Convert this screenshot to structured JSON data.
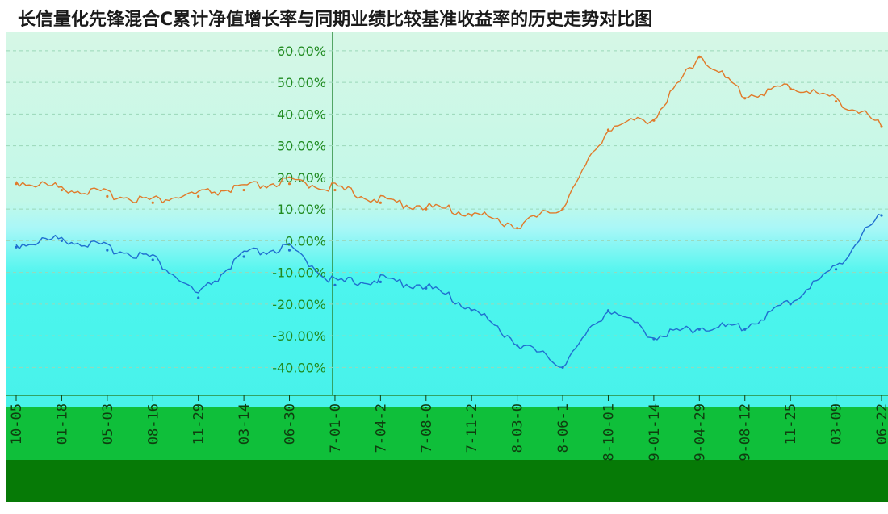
{
  "title": "长信量化先锋混合C累计净值增长率与同期业绩比较基准收益率的历史走势对比图",
  "colors": {
    "fund_line": "#1f6fd0",
    "benchmark_line": "#e07a2a",
    "plot_bg_top": "#d6f7e6",
    "plot_bg_mid": "#aaf7f7",
    "plot_bg_low": "#4cf5ee",
    "axis_band": "#0fbf3a",
    "footer_band": "#067a06",
    "tick_text": "#1f8a1f",
    "grid": "#9ad7b8"
  },
  "chart_data": {
    "type": "line",
    "title": "长信量化先锋混合C累计净值增长率与同期业绩比较基准收益率的历史走势对比图",
    "y_tick_labels": [
      "60.00%",
      "50.00%",
      "40.00%",
      "30.00%",
      "20.00%",
      "10.00%",
      "0.00%",
      "-10.00%",
      "-20.00%",
      "-30.00%",
      "-40.00%"
    ],
    "ylim": [
      -45,
      62
    ],
    "x_tick_labels": [
      "10-05",
      "01-18",
      "05-03",
      "08-16",
      "11-29",
      "03-14",
      "06-30",
      "7-01-0",
      "7-04-2",
      "7-08-0",
      "7-11-2",
      "8-03-0",
      "8-06-1",
      "8-10-01",
      "9-01-14",
      "9-04-29",
      "9-08-12",
      "11-25",
      "03-09",
      "06-22"
    ],
    "series": [
      {
        "key": "fund",
        "x": [
          0,
          1,
          2,
          3,
          4,
          5,
          6,
          7,
          8,
          9,
          10,
          11,
          12,
          13,
          14,
          15,
          16,
          17,
          18,
          19
        ],
        "y": [
          -2,
          0,
          -3,
          -6,
          -18,
          -5,
          -3,
          -14,
          -13,
          -15,
          -22,
          -33,
          -40,
          -22,
          -31,
          -28,
          -28,
          -20,
          -9,
          8
        ]
      },
      {
        "key": "benchmark",
        "x": [
          0,
          1,
          2,
          3,
          4,
          5,
          6,
          7,
          8,
          9,
          10,
          11,
          12,
          13,
          14,
          15,
          16,
          17,
          18,
          19
        ],
        "y": [
          18,
          16,
          14,
          12,
          14,
          16,
          18,
          16,
          12,
          10,
          8,
          4,
          10,
          35,
          38,
          58,
          45,
          48,
          44,
          36
        ]
      }
    ],
    "grid": true,
    "legend": "none"
  }
}
